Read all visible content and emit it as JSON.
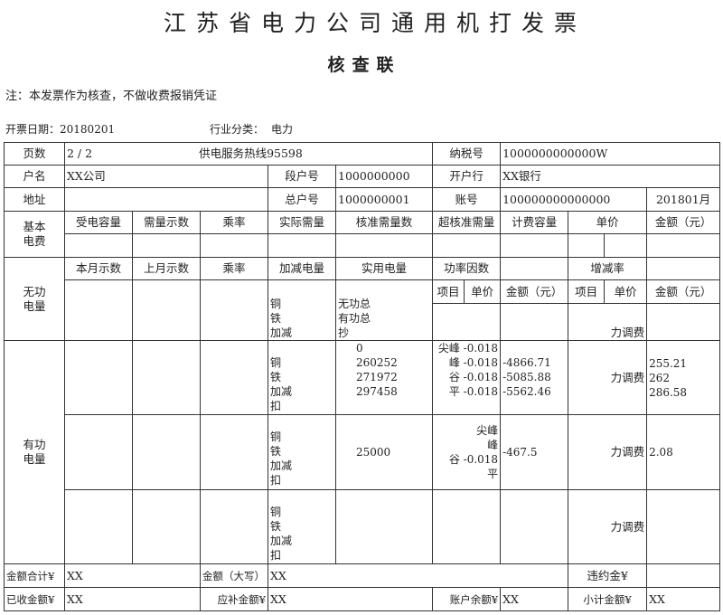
{
  "header": {
    "title": "江苏省电力公司通用机打发票",
    "subtitle": "核查联",
    "note": "注：本发票作为核查，不做收费报销凭证",
    "date_label": "开票日期：",
    "date": "20180201",
    "industry_label": "行业分类：",
    "industry": "电力"
  },
  "info": {
    "pages_label": "页数",
    "pages": "2 / 2",
    "hotline": "供电服务热线95598",
    "tax_label": "纳税号",
    "tax": "1000000000000W",
    "name_label": "户名",
    "name": "XX公司",
    "seg_label": "段户号",
    "seg": "1000000000",
    "bank_label": "开户行",
    "bank": "XX银行",
    "addr_label": "地址",
    "total_label": "总户号",
    "total": "1000000001",
    "account_label": "账号",
    "account": "100000000000000",
    "month": "201801月"
  },
  "basic": {
    "label": "基本\n电费",
    "headers": [
      "受电容量",
      "需量示数",
      "乘率",
      "实际需量",
      "核准需量数",
      "超核准需量",
      "计费容量",
      "单价",
      "金额（元）"
    ]
  },
  "reactive": {
    "label": "无功\n电量",
    "headers": [
      "本月示数",
      "上月示数",
      "乘率",
      "加减电量",
      "实用电量",
      "功率因数",
      "增减率"
    ],
    "sub_headers": [
      "项目",
      "单价",
      "金额（元）",
      "项目",
      "单价",
      "金额（元）"
    ],
    "adjust": "铜\n铁\n加减",
    "used": "无功总\n有功总\n抄",
    "fee_label": "力调费"
  },
  "active": {
    "label": "有功\n电量",
    "rows": [
      {
        "adjust": "铜\n铁\n加减\n扣",
        "used": "0\n260252\n271972\n297458",
        "periods": "尖峰 -0.018\n峰 -0.018\n谷 -0.018\n平 -0.018",
        "amounts": "\n-4866.71\n-5085.88\n-5562.46",
        "fee_label": "力调费",
        "fee": "255.21\n262\n286.58"
      },
      {
        "adjust": "铜\n铁\n加减\n扣",
        "used": "25000",
        "periods": "尖峰      \n峰      \n谷 -0.018\n平      ",
        "amounts": "-467.5",
        "fee_label": "力调费",
        "fee": "2.08"
      },
      {
        "adjust": "铜\n铁\n加减\n扣",
        "used": "",
        "periods": "",
        "amounts": "",
        "fee_label": "力调费",
        "fee": ""
      }
    ]
  },
  "totals": {
    "sum_label": "金额合计¥",
    "sum": "XX",
    "upper_label": "金额（大写）",
    "upper": "XX",
    "penalty_label": "违约金¥",
    "received_label": "已收金额¥",
    "received": "XX",
    "due_label": "应补金额¥",
    "due": "XX",
    "balance_label": "账户余额¥",
    "balance": "XX",
    "subtotal_label": "小计金额¥",
    "subtotal": "XX"
  }
}
